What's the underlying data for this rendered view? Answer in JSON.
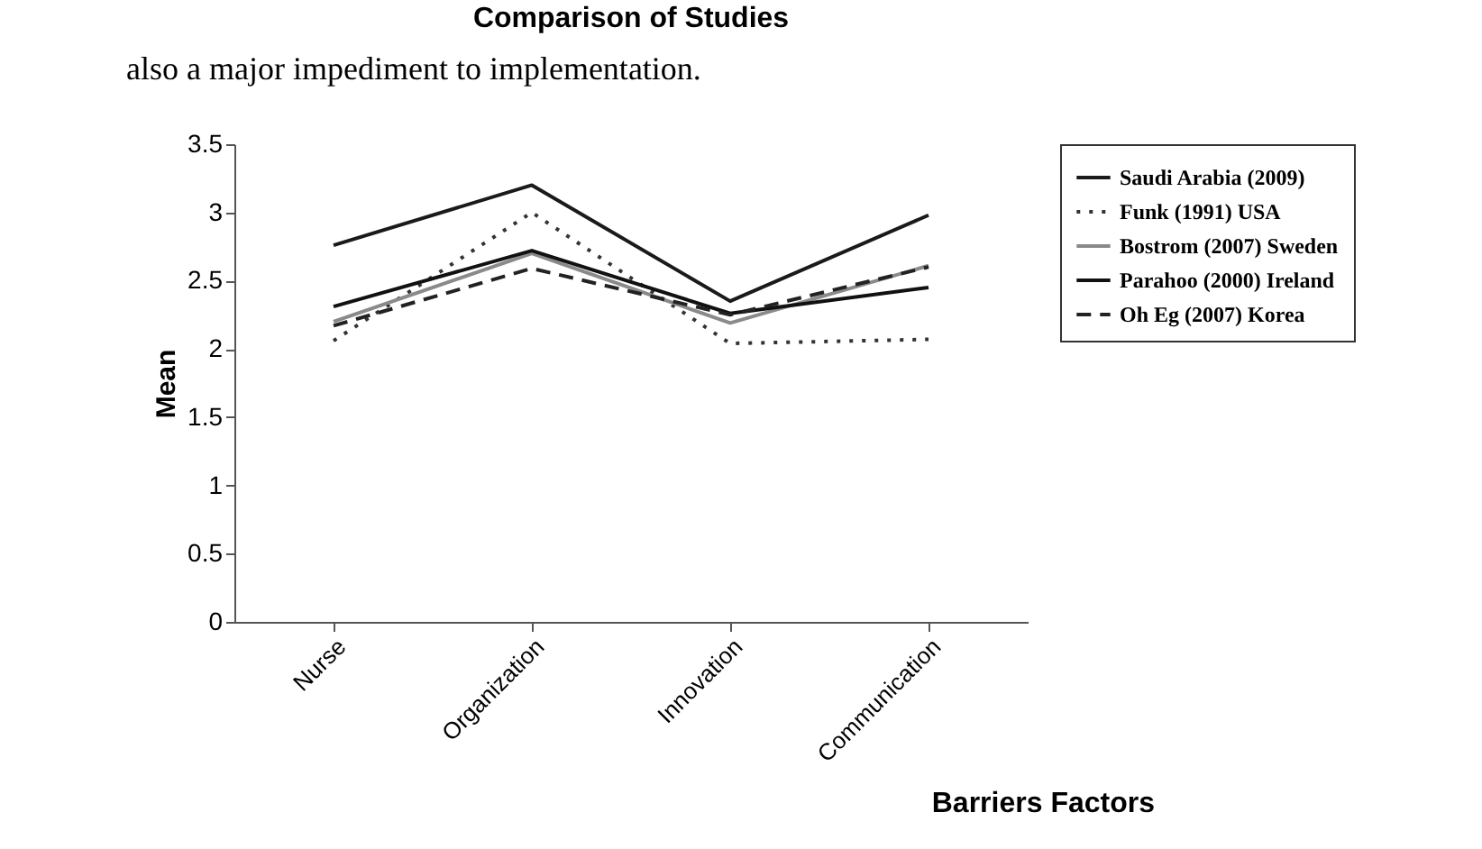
{
  "chart_data": {
    "type": "line",
    "title": "Comparison of Studies",
    "xlabel": "Barriers Factors",
    "ylabel": "Mean",
    "annotations": [
      "also a major impediment to implementation."
    ],
    "categories": [
      "Nurse",
      "Organization",
      "Innovation",
      "Communication"
    ],
    "ylim": [
      0,
      3.5
    ],
    "yticks": [
      0,
      0.5,
      1,
      1.5,
      2,
      2.5,
      3,
      3.5
    ],
    "grid": false,
    "legend": "right",
    "marker": "none",
    "series": [
      {
        "name": "Saudi Arabia (2009)",
        "color": "#1a1a1a",
        "line_style": "solid",
        "values": [
          2.76,
          3.2,
          2.35,
          2.98
        ]
      },
      {
        "name": "Funk (1991) USA",
        "color": "#333333",
        "line_style": "dotted",
        "values": [
          2.06,
          3.0,
          2.04,
          2.07
        ]
      },
      {
        "name": "Bostrom (2007) Sweden",
        "color": "#8a8a8a",
        "line_style": "solid",
        "values": [
          2.2,
          2.7,
          2.19,
          2.61
        ]
      },
      {
        "name": "Parahoo (2000) Ireland",
        "color": "#111111",
        "line_style": "solid",
        "values": [
          2.31,
          2.72,
          2.26,
          2.45
        ]
      },
      {
        "name": "Oh Eg (2007) Korea",
        "color": "#222222",
        "line_style": "dashed",
        "values": [
          2.17,
          2.59,
          2.25,
          2.6
        ]
      }
    ]
  }
}
